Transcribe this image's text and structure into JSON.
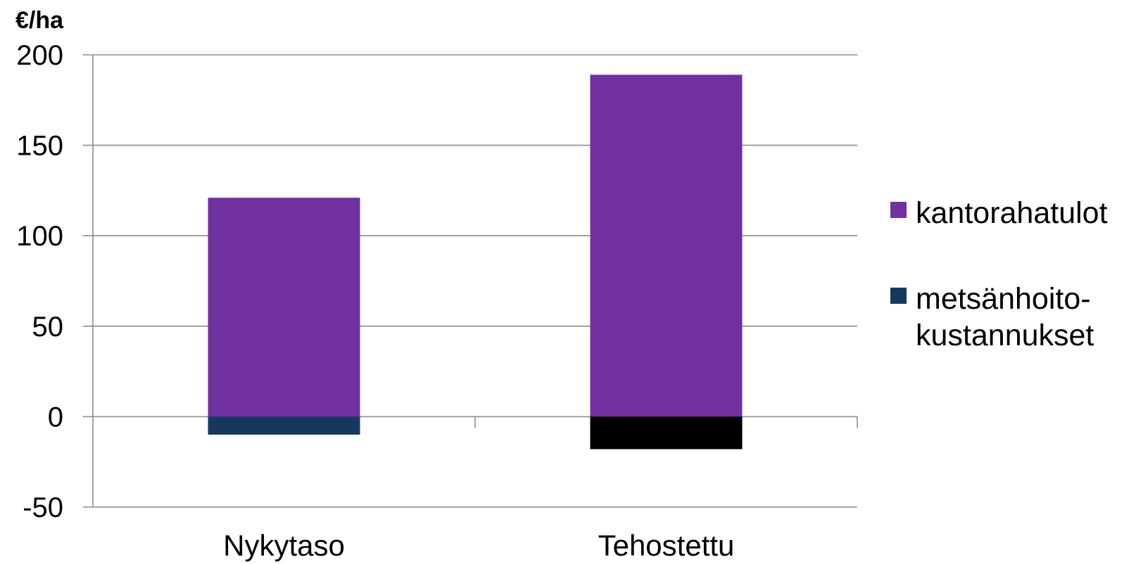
{
  "chart_data": {
    "type": "bar",
    "stacked": true,
    "ylabel": "€/ha",
    "ylim": [
      -50,
      200
    ],
    "yticks": [
      -50,
      0,
      50,
      100,
      150,
      200
    ],
    "grid": true,
    "legend": "right",
    "categories": [
      "Nykytaso",
      "Tehostettu"
    ],
    "series": [
      {
        "name": "kantorahatulot",
        "values": [
          121,
          189
        ],
        "color": "#7030a0"
      },
      {
        "name": "metsänhoito-kustannukset",
        "legend_lines": [
          "metsänhoito-",
          "kustannukset"
        ],
        "values": [
          -10,
          -18
        ],
        "color": "#17375e",
        "bar_colors": [
          "#17375e",
          "#000000"
        ]
      }
    ]
  }
}
